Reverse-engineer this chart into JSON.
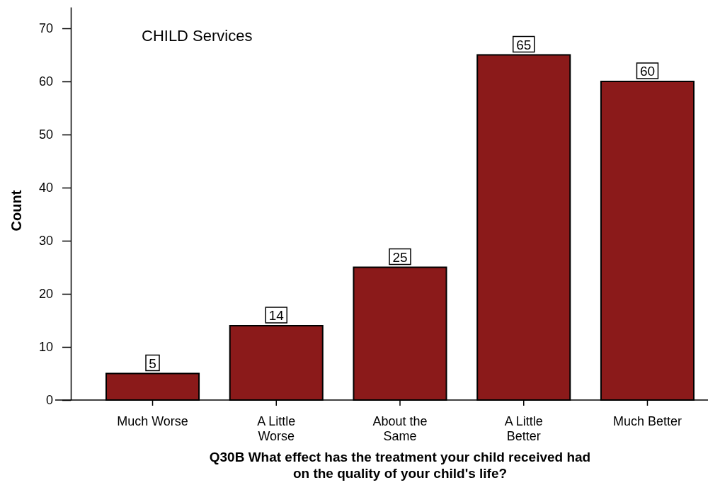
{
  "chart_data": {
    "type": "bar",
    "title": "CHILD Services",
    "xlabel": "Q30B What effect has the treatment your child received had on the quality of your child's life?",
    "ylabel": "Count",
    "categories": [
      "Much Worse",
      "A Little Worse",
      "About the Same",
      "A Little Better",
      "Much Better"
    ],
    "values": [
      5,
      14,
      25,
      65,
      60
    ],
    "color": "#8b1a1a",
    "ylim": [
      0,
      74
    ],
    "yticks": [
      0,
      10,
      20,
      30,
      40,
      50,
      60,
      70
    ],
    "data_labels": true,
    "grid": false
  }
}
